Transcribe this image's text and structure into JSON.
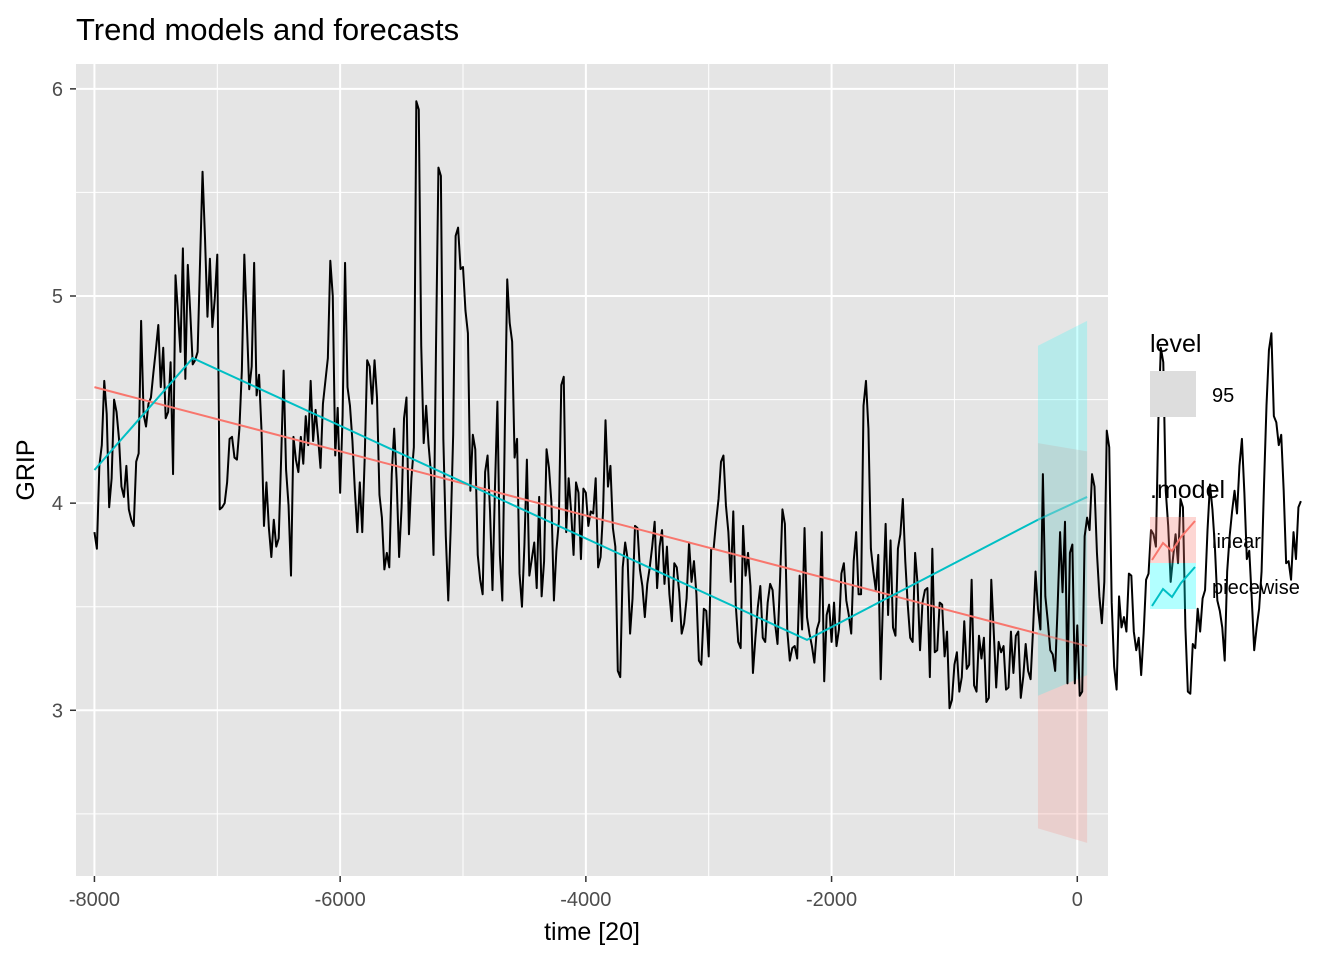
{
  "chart_data": {
    "type": "line",
    "title": "Trend models and forecasts",
    "xlabel": "time [20]",
    "ylabel": "GRIP",
    "xlim": [
      -8150,
      250
    ],
    "ylim": [
      2.2,
      6.12
    ],
    "xticks": [
      -8000,
      -6000,
      -4000,
      -2000,
      0
    ],
    "xtick_labels": [
      "-8000",
      "-6000",
      "-4000",
      "-2000",
      "0"
    ],
    "yticks": [
      3,
      4,
      5,
      6
    ],
    "ytick_labels": [
      "3",
      "4",
      "5",
      "6"
    ],
    "grid": true,
    "legend_position": "right",
    "legend": {
      "level_title": "level",
      "level_items": [
        "95"
      ],
      "model_title": ".model",
      "model_items": [
        "linear",
        "piecewise"
      ]
    },
    "colors": {
      "panel": "#e5e5e5",
      "grid": "#ffffff",
      "observed": "#000000",
      "linear": "#f8766d",
      "piecewise": "#00bfc4",
      "band_linear": "#f8766d",
      "band_piecewise": "#00ffff"
    },
    "observed": {
      "name": "GRIP",
      "x_start": -8000,
      "x_step": 20,
      "values": [
        3.86,
        3.78,
        4.18,
        4.28,
        4.59,
        4.43,
        3.98,
        4.12,
        4.5,
        4.44,
        4.31,
        4.08,
        4.03,
        4.18,
        3.97,
        3.92,
        3.89,
        4.2,
        4.24,
        4.88,
        4.43,
        4.37,
        4.48,
        4.51,
        4.63,
        4.74,
        4.86,
        4.56,
        4.75,
        4.41,
        4.44,
        4.68,
        4.14,
        5.1,
        4.92,
        4.73,
        5.23,
        4.6,
        5.15,
        4.92,
        4.67,
        4.69,
        4.73,
        5.17,
        5.6,
        5.28,
        4.9,
        5.18,
        4.85,
        4.99,
        5.2,
        3.97,
        3.98,
        4.0,
        4.1,
        4.31,
        4.32,
        4.22,
        4.21,
        4.36,
        4.64,
        5.2,
        4.88,
        4.55,
        4.66,
        5.16,
        4.52,
        4.62,
        4.35,
        3.89,
        4.1,
        3.88,
        3.74,
        3.92,
        3.79,
        3.83,
        4.22,
        4.64,
        4.16,
        3.99,
        3.65,
        4.32,
        4.21,
        4.15,
        4.32,
        4.19,
        4.42,
        4.28,
        4.59,
        4.3,
        4.45,
        4.32,
        4.17,
        4.48,
        4.59,
        4.7,
        5.17,
        5.0,
        4.23,
        4.46,
        4.05,
        4.42,
        5.16,
        4.56,
        4.47,
        4.3,
        4.06,
        3.86,
        4.1,
        3.86,
        4.22,
        4.69,
        4.66,
        4.48,
        4.69,
        4.51,
        4.04,
        3.93,
        3.68,
        3.76,
        3.69,
        4.14,
        4.36,
        4.11,
        3.74,
        3.98,
        4.41,
        4.51,
        3.85,
        4.12,
        4.27,
        5.94,
        5.9,
        4.76,
        4.29,
        4.47,
        4.28,
        4.14,
        3.75,
        4.74,
        5.62,
        5.58,
        4.31,
        3.84,
        3.53,
        3.88,
        4.33,
        5.29,
        5.33,
        5.13,
        5.14,
        4.93,
        4.82,
        4.06,
        4.33,
        4.26,
        3.75,
        3.63,
        3.56,
        4.15,
        4.23,
        3.96,
        3.58,
        4.07,
        4.49,
        3.75,
        3.53,
        4.34,
        5.08,
        4.87,
        4.78,
        4.22,
        4.31,
        3.66,
        3.5,
        3.8,
        4.21,
        3.65,
        3.73,
        3.81,
        3.59,
        4.03,
        3.55,
        3.72,
        4.26,
        4.17,
        4.0,
        3.53,
        3.77,
        3.91,
        4.57,
        4.61,
        3.86,
        4.12,
        3.96,
        3.75,
        4.1,
        4.05,
        3.73,
        4.07,
        4.05,
        3.89,
        3.96,
        3.95,
        4.12,
        3.69,
        3.74,
        3.96,
        4.4,
        4.08,
        4.18,
        3.88,
        3.79,
        3.19,
        3.16,
        3.69,
        3.81,
        3.73,
        3.37,
        3.54,
        3.89,
        3.88,
        3.68,
        3.6,
        3.45,
        3.61,
        3.69,
        3.79,
        3.91,
        3.59,
        3.79,
        3.87,
        3.61,
        3.79,
        3.56,
        3.43,
        3.71,
        3.69,
        3.57,
        3.37,
        3.42,
        3.54,
        3.81,
        3.62,
        3.72,
        3.56,
        3.24,
        3.22,
        3.49,
        3.48,
        3.26,
        3.78,
        3.78,
        3.91,
        4.02,
        4.2,
        4.23,
        3.99,
        3.86,
        3.62,
        3.96,
        3.51,
        3.33,
        3.3,
        3.89,
        3.65,
        3.76,
        3.6,
        3.18,
        3.35,
        3.5,
        3.6,
        3.35,
        3.33,
        3.52,
        3.61,
        3.58,
        3.42,
        3.32,
        3.62,
        3.97,
        3.9,
        3.38,
        3.24,
        3.3,
        3.31,
        3.25,
        3.65,
        3.39,
        3.88,
        3.45,
        3.37,
        3.31,
        3.23,
        3.39,
        3.43,
        3.86,
        3.14,
        3.46,
        3.51,
        3.33,
        3.52,
        3.31,
        3.39,
        3.66,
        3.71,
        3.53,
        3.46,
        3.37,
        3.72,
        3.86,
        3.56,
        3.56,
        4.47,
        4.59,
        4.36,
        3.78,
        3.67,
        3.58,
        3.75,
        3.15,
        3.56,
        3.9,
        3.46,
        3.82,
        3.4,
        3.36,
        3.78,
        3.85,
        4.02,
        3.72,
        3.51,
        3.35,
        3.33,
        3.76,
        3.61,
        3.29,
        3.52,
        3.58,
        3.59,
        3.16,
        3.78,
        3.28,
        3.29,
        3.52,
        3.51,
        3.26,
        3.38,
        3.01,
        3.05,
        3.22,
        3.28,
        3.09,
        3.16,
        3.43,
        3.2,
        3.22,
        3.63,
        3.12,
        3.09,
        3.36,
        3.25,
        3.35,
        3.04,
        3.06,
        3.63,
        3.38,
        3.11,
        3.33,
        3.28,
        3.31,
        3.1,
        3.11,
        3.38,
        3.18,
        3.36,
        3.38,
        3.06,
        3.16,
        3.32,
        3.19,
        3.15,
        3.39,
        3.67,
        3.49,
        3.39,
        4.14,
        3.55,
        3.43,
        3.29,
        3.27,
        3.19,
        3.5,
        3.86,
        3.57,
        3.91,
        3.13,
        3.76,
        3.8,
        3.13,
        3.41,
        3.07,
        3.09,
        3.84,
        3.93,
        3.87,
        4.14,
        4.08,
        3.76,
        3.55,
        3.42,
        3.62,
        4.35,
        4.27,
        3.52,
        3.21,
        3.1,
        3.55,
        3.4,
        3.45,
        3.38,
        3.66,
        3.65,
        3.38,
        3.29,
        3.35,
        3.17,
        3.37,
        3.63,
        3.66,
        3.87,
        3.85,
        3.79,
        4.4,
        4.75,
        4.68,
        4.06,
        3.89,
        3.62,
        3.74,
        3.85,
        3.71,
        4.02,
        3.98,
        3.4,
        3.09,
        3.08,
        3.32,
        3.3,
        3.49,
        3.38,
        3.54,
        3.58,
        3.87,
        4.09,
        3.97,
        3.79,
        3.53,
        3.48,
        3.4,
        3.24,
        3.67,
        3.84,
        3.96,
        4.06,
        3.95,
        4.18,
        4.31,
        4.05,
        3.73,
        3.77,
        3.54,
        3.29,
        3.4,
        3.49,
        3.67,
        4.09,
        4.47,
        4.74,
        4.82,
        4.42,
        4.39,
        4.28,
        4.33,
        4.06,
        3.71,
        3.72,
        3.63,
        3.86,
        3.73,
        3.98,
        4.01
      ]
    },
    "fitted": [
      {
        "name": "linear",
        "x": [
          -8000,
          -320
        ],
        "y": [
          4.56,
          3.37
        ]
      },
      {
        "name": "piecewise",
        "x": [
          -8000,
          -7200,
          -2200,
          -320
        ],
        "y": [
          4.16,
          4.7,
          3.34,
          3.92
        ]
      }
    ],
    "forecasts": [
      {
        "name": "linear",
        "x": [
          -320,
          80
        ],
        "y": [
          3.37,
          3.31
        ],
        "lower": [
          2.43,
          2.36
        ],
        "upper": [
          4.29,
          4.25
        ],
        "level": 95
      },
      {
        "name": "piecewise",
        "x": [
          -320,
          80
        ],
        "y": [
          3.92,
          4.03
        ],
        "lower": [
          3.07,
          3.17
        ],
        "upper": [
          4.76,
          4.88
        ],
        "level": 95
      }
    ]
  }
}
